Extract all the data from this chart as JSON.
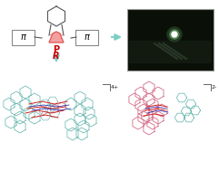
{
  "white": "#ffffff",
  "arrow_color": "#7ecec4",
  "phosphole_fill": "#f4a0a0",
  "phosphole_edge": "#e06060",
  "p_color": "#cc0000",
  "r_color": "#cc0000",
  "pi_color": "#000000",
  "box_gray": "#888888",
  "hex_color": "#555555",
  "dark_photo_bg": "#0a1008",
  "charge_4plus": "4+",
  "charge_2plus": "2-",
  "teal": "#5ab0a8",
  "red": "#cc2020",
  "blue": "#1010a0",
  "pink": "#d06080",
  "darkgray": "#404040"
}
